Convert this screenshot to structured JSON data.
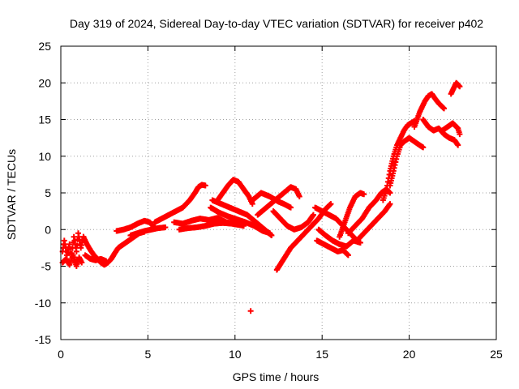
{
  "chart_data": {
    "type": "scatter",
    "title": "Day 319 of 2024, Sidereal Day-to-day VTEC variation (SDTVAR) for receiver p402",
    "xlabel": "GPS time / hours",
    "ylabel": "SDTVAR / TECUs",
    "xlim": [
      0,
      25
    ],
    "ylim": [
      -15,
      25
    ],
    "xticks": [
      0,
      5,
      10,
      15,
      20,
      25
    ],
    "yticks": [
      -15,
      -10,
      -5,
      0,
      5,
      10,
      15,
      20,
      25
    ],
    "grid": true,
    "marker": "+",
    "color": "#ff0000",
    "tracks": [
      [
        [
          0.1,
          -3
        ],
        [
          0.2,
          -1.5
        ],
        [
          0.35,
          -3.5
        ],
        [
          0.5,
          -2
        ],
        [
          0.6,
          -4
        ],
        [
          0.75,
          -1
        ],
        [
          0.9,
          -3
        ],
        [
          1.0,
          -0.5
        ],
        [
          1.15,
          -2.5
        ],
        [
          1.3,
          -1
        ]
      ],
      [
        [
          0.1,
          -4.5
        ],
        [
          0.3,
          -4
        ],
        [
          0.5,
          -4.8
        ],
        [
          0.7,
          -3.5
        ],
        [
          0.9,
          -5
        ],
        [
          1.05,
          -3.8
        ],
        [
          1.2,
          -4.5
        ]
      ],
      [
        [
          1.3,
          -1
        ],
        [
          1.5,
          -2
        ],
        [
          1.7,
          -2.8
        ],
        [
          1.9,
          -3.5
        ],
        [
          2.1,
          -4
        ],
        [
          2.3,
          -4.5
        ],
        [
          2.5,
          -4.8
        ],
        [
          2.7,
          -4.5
        ],
        [
          2.9,
          -4
        ],
        [
          3.1,
          -3.2
        ],
        [
          3.3,
          -2.5
        ],
        [
          3.6,
          -2
        ],
        [
          3.9,
          -1.5
        ],
        [
          4.2,
          -1
        ],
        [
          4.5,
          -0.5
        ],
        [
          4.8,
          -0.3
        ]
      ],
      [
        [
          1.4,
          -3.5
        ],
        [
          1.7,
          -4
        ],
        [
          2.0,
          -4.2
        ],
        [
          2.3,
          -4
        ],
        [
          2.6,
          -4.3
        ]
      ],
      [
        [
          3.2,
          -0.2
        ],
        [
          3.6,
          0
        ],
        [
          4.0,
          0.3
        ],
        [
          4.4,
          0.8
        ],
        [
          4.8,
          1.2
        ],
        [
          5.1,
          1
        ],
        [
          5.3,
          0.5
        ]
      ],
      [
        [
          4.0,
          -0.8
        ],
        [
          4.4,
          -0.5
        ],
        [
          4.8,
          -0.2
        ],
        [
          5.2,
          0
        ],
        [
          5.6,
          0.2
        ],
        [
          6.0,
          0.3
        ]
      ],
      [
        [
          5.4,
          1
        ],
        [
          5.8,
          1.5
        ],
        [
          6.2,
          2
        ],
        [
          6.6,
          2.5
        ],
        [
          7.0,
          3
        ],
        [
          7.4,
          4
        ],
        [
          7.7,
          5
        ],
        [
          7.9,
          5.8
        ],
        [
          8.1,
          6.1
        ],
        [
          8.3,
          6
        ]
      ],
      [
        [
          6.5,
          1
        ],
        [
          7.0,
          0.8
        ],
        [
          7.5,
          1.2
        ],
        [
          8.0,
          1.5
        ],
        [
          8.5,
          1.3
        ],
        [
          9.0,
          1.6
        ],
        [
          9.5,
          1
        ],
        [
          10.0,
          0.8
        ],
        [
          10.5,
          0.5
        ]
      ],
      [
        [
          6.8,
          0
        ],
        [
          7.3,
          0.2
        ],
        [
          7.8,
          0.3
        ],
        [
          8.3,
          0.5
        ],
        [
          8.8,
          0.8
        ],
        [
          9.3,
          0.9
        ],
        [
          9.8,
          0.8
        ],
        [
          10.3,
          0.6
        ]
      ],
      [
        [
          9.0,
          4
        ],
        [
          9.3,
          5
        ],
        [
          9.6,
          6
        ],
        [
          9.9,
          6.8
        ],
        [
          10.2,
          6.5
        ],
        [
          10.5,
          5.5
        ],
        [
          10.8,
          4.5
        ],
        [
          11.0,
          3.5
        ]
      ],
      [
        [
          8.7,
          4
        ],
        [
          9.2,
          3.5
        ],
        [
          9.7,
          3
        ],
        [
          10.2,
          2.5
        ],
        [
          10.7,
          2
        ],
        [
          11.2,
          1
        ],
        [
          11.7,
          0
        ],
        [
          12.1,
          -0.8
        ]
      ],
      [
        [
          8.6,
          3
        ],
        [
          9.1,
          2.3
        ],
        [
          9.6,
          1.8
        ],
        [
          10.1,
          1.4
        ],
        [
          10.6,
          1
        ],
        [
          11.1,
          0.5
        ],
        [
          11.6,
          -0.2
        ],
        [
          12.0,
          -0.5
        ]
      ],
      [
        [
          11.0,
          4
        ],
        [
          11.5,
          5
        ],
        [
          12.0,
          4.5
        ],
        [
          12.5,
          3.8
        ],
        [
          12.8,
          3.5
        ],
        [
          13.2,
          3
        ]
      ],
      [
        [
          11.3,
          2
        ],
        [
          11.8,
          3
        ],
        [
          12.3,
          4
        ],
        [
          12.8,
          5
        ],
        [
          13.2,
          5.8
        ],
        [
          13.5,
          5.5
        ],
        [
          13.7,
          4.5
        ]
      ],
      [
        [
          12.2,
          2.5
        ],
        [
          12.6,
          1.5
        ],
        [
          13.0,
          0.5
        ],
        [
          13.4,
          0
        ],
        [
          13.8,
          0.3
        ],
        [
          14.2,
          1
        ],
        [
          14.5,
          2
        ]
      ],
      [
        [
          12.4,
          -5.5
        ],
        [
          12.8,
          -4
        ],
        [
          13.2,
          -2.5
        ],
        [
          13.6,
          -1.5
        ],
        [
          14.0,
          -0.5
        ],
        [
          14.4,
          0.5
        ],
        [
          14.8,
          1.5
        ],
        [
          15.2,
          2.8
        ],
        [
          15.5,
          3.5
        ]
      ],
      [
        [
          14.6,
          3
        ],
        [
          15.0,
          2.5
        ],
        [
          15.4,
          2
        ],
        [
          15.8,
          1.5
        ],
        [
          16.2,
          0.5
        ],
        [
          16.6,
          -0.5
        ],
        [
          17.0,
          -1.5
        ]
      ],
      [
        [
          14.8,
          0
        ],
        [
          15.2,
          -0.8
        ],
        [
          15.6,
          -1.5
        ],
        [
          16.0,
          -2
        ],
        [
          16.4,
          -2.3
        ],
        [
          16.8,
          -1.5
        ],
        [
          17.2,
          -1.8
        ]
      ],
      [
        [
          14.7,
          -1.5
        ],
        [
          15.1,
          -2
        ],
        [
          15.5,
          -2.5
        ],
        [
          15.9,
          -3
        ],
        [
          16.2,
          -2.8
        ],
        [
          16.5,
          -3.5
        ]
      ],
      [
        [
          16.0,
          -1
        ],
        [
          16.3,
          1
        ],
        [
          16.6,
          3
        ],
        [
          16.9,
          4.5
        ],
        [
          17.2,
          5
        ],
        [
          17.4,
          4.8
        ]
      ],
      [
        [
          16.5,
          -0.5
        ],
        [
          16.9,
          0.5
        ],
        [
          17.3,
          1.5
        ],
        [
          17.7,
          3
        ],
        [
          18.1,
          4
        ],
        [
          18.4,
          5
        ],
        [
          18.7,
          5.5
        ],
        [
          18.9,
          5
        ]
      ],
      [
        [
          17.0,
          -1.5
        ],
        [
          17.4,
          -0.5
        ],
        [
          17.8,
          0.5
        ],
        [
          18.2,
          1.5
        ],
        [
          18.6,
          2.5
        ],
        [
          18.9,
          3.5
        ]
      ],
      [
        [
          18.5,
          4
        ],
        [
          18.7,
          5.5
        ],
        [
          18.9,
          8
        ],
        [
          19.1,
          10
        ],
        [
          19.3,
          11.5
        ],
        [
          19.5,
          12.5
        ],
        [
          19.7,
          13.5
        ],
        [
          19.9,
          14.2
        ],
        [
          20.1,
          14.5
        ],
        [
          20.3,
          14.8
        ]
      ],
      [
        [
          18.9,
          6
        ],
        [
          19.1,
          8
        ],
        [
          19.3,
          10
        ],
        [
          19.5,
          11.5
        ],
        [
          19.7,
          12
        ],
        [
          20.0,
          12.5
        ],
        [
          20.3,
          12
        ],
        [
          20.6,
          11.5
        ],
        [
          20.8,
          11.2
        ]
      ],
      [
        [
          20.3,
          14
        ],
        [
          20.6,
          16
        ],
        [
          20.9,
          17.5
        ],
        [
          21.1,
          18.2
        ],
        [
          21.3,
          18.5
        ],
        [
          21.5,
          17.8
        ],
        [
          21.7,
          17.2
        ],
        [
          22.0,
          16.5
        ]
      ],
      [
        [
          20.8,
          15
        ],
        [
          21.1,
          14
        ],
        [
          21.4,
          13.5
        ],
        [
          21.7,
          13.8
        ],
        [
          22.0,
          13
        ],
        [
          22.3,
          12.5
        ],
        [
          22.6,
          12.2
        ],
        [
          22.8,
          11.5
        ]
      ],
      [
        [
          21.9,
          13.5
        ],
        [
          22.2,
          14
        ],
        [
          22.5,
          14.5
        ],
        [
          22.8,
          13.8
        ],
        [
          22.9,
          13
        ]
      ],
      [
        [
          22.4,
          18.5
        ],
        [
          22.6,
          19.5
        ],
        [
          22.7,
          20
        ],
        [
          22.9,
          19.5
        ]
      ],
      [
        [
          10.9,
          -11.1
        ]
      ]
    ]
  }
}
